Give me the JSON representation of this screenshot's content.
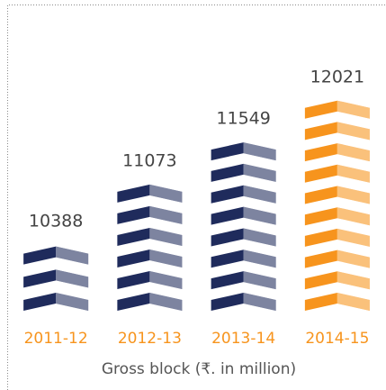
{
  "chart_data": {
    "type": "pictogram-bar",
    "title": "Gross block (₹. in million)",
    "categories": [
      "2011-12",
      "2012-13",
      "2013-14",
      "2014-15"
    ],
    "values": [
      10388,
      11073,
      11549,
      12021
    ],
    "colors": [
      "#1f2b5c",
      "#1f2b5c",
      "#1f2b5c",
      "#f7941d"
    ],
    "category_label_color": "#f7941d"
  }
}
